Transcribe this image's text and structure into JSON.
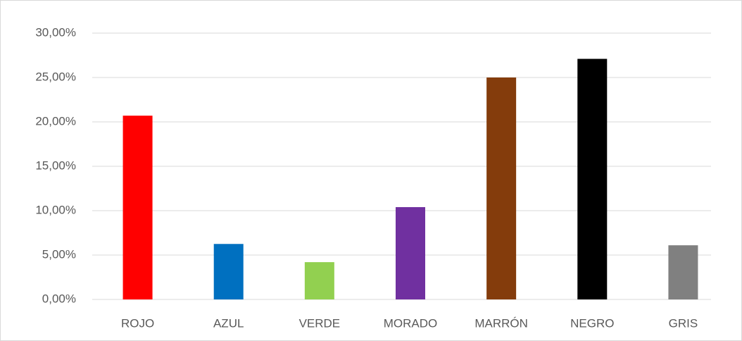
{
  "chart_data": {
    "type": "bar",
    "categories": [
      "ROJO",
      "AZUL",
      "VERDE",
      "MORADO",
      "MARRÓN",
      "NEGRO",
      "GRIS"
    ],
    "values": [
      20.7,
      6.25,
      4.2,
      10.4,
      25.0,
      27.1,
      6.1
    ],
    "colors": [
      "#ff0000",
      "#0070c0",
      "#92d050",
      "#7030a0",
      "#843c0c",
      "#000000",
      "#808080"
    ],
    "ylim": [
      0,
      30
    ],
    "yticks": [
      {
        "value": 0,
        "label": "0,00%"
      },
      {
        "value": 5,
        "label": "5,00%"
      },
      {
        "value": 10,
        "label": "10,00%"
      },
      {
        "value": 15,
        "label": "15,00%"
      },
      {
        "value": 20,
        "label": "20,00%"
      },
      {
        "value": 25,
        "label": "25,00%"
      },
      {
        "value": 30,
        "label": "30,00%"
      }
    ],
    "grid": true
  }
}
